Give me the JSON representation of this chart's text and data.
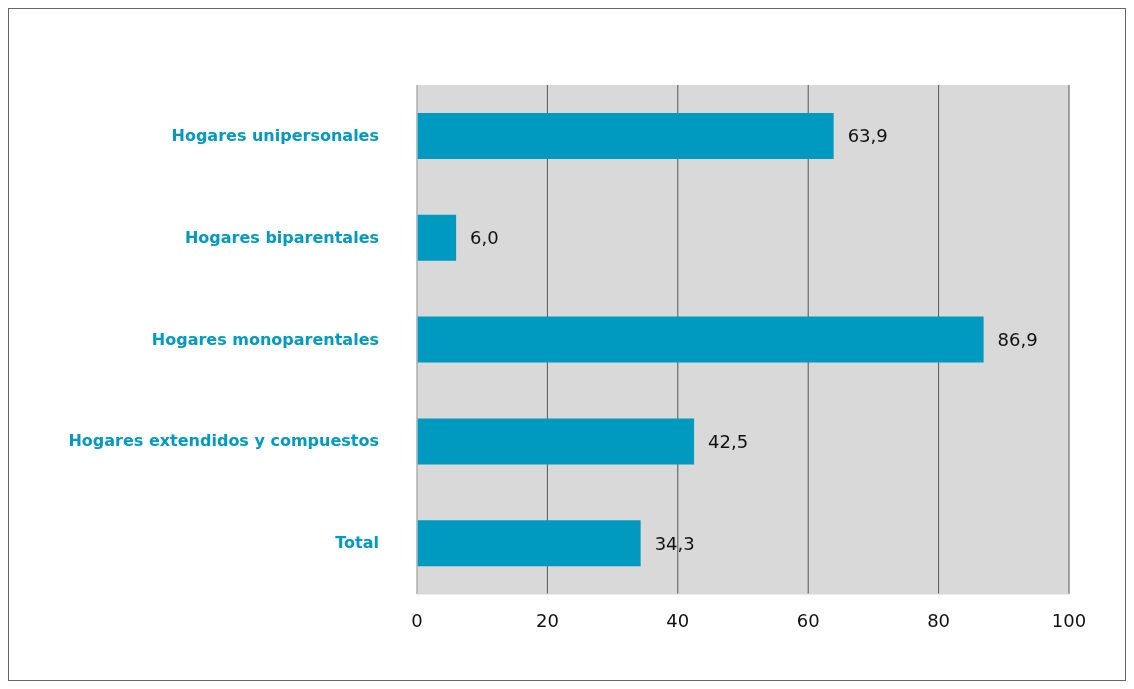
{
  "chart_data": {
    "type": "bar",
    "orientation": "horizontal",
    "categories": [
      "Hogares unipersonales",
      "Hogares biparentales",
      "Hogares monoparentales",
      "Hogares extendidos y compuestos",
      "Total"
    ],
    "values": [
      63.9,
      6.0,
      86.9,
      42.5,
      34.3
    ],
    "value_labels": [
      "63,9",
      "6,0",
      "86,9",
      "42,5",
      "34,3"
    ],
    "color": "#0099bf",
    "xlim": [
      0,
      100
    ],
    "xticks": [
      0,
      20,
      40,
      60,
      80,
      100
    ],
    "grid": "x"
  }
}
